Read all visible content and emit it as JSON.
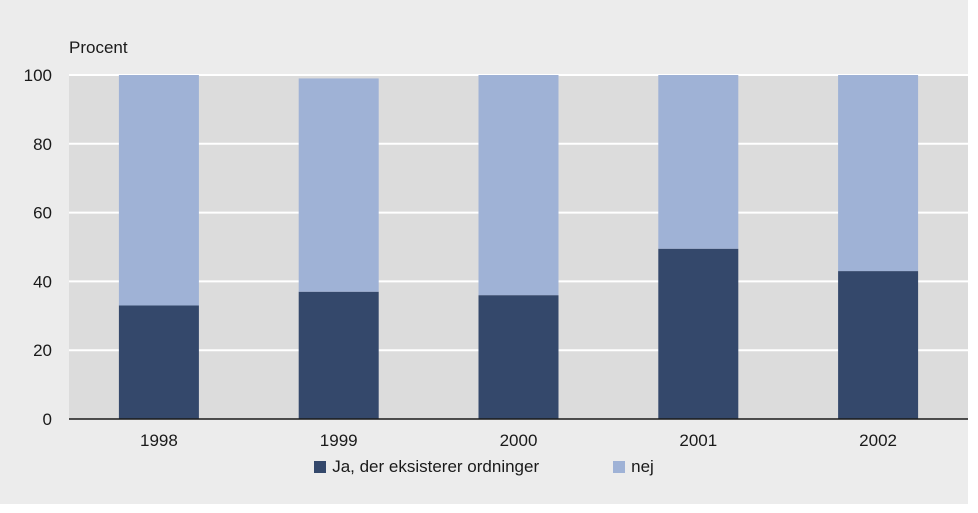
{
  "chart_data": {
    "type": "bar",
    "stacked": true,
    "categories": [
      "1998",
      "1999",
      "2000",
      "2001",
      "2002"
    ],
    "series": [
      {
        "name": "Ja, der eksisterer ordninger",
        "values": [
          33,
          37,
          36,
          49.5,
          43
        ],
        "color": "#34486b"
      },
      {
        "name": "nej",
        "values": [
          67,
          62,
          64,
          50.5,
          57
        ],
        "color": "#9fb2d6"
      }
    ],
    "title": "",
    "ylabel": "Procent",
    "xlabel": "",
    "ylim": [
      0,
      100
    ],
    "yticks": [
      0,
      20,
      40,
      60,
      80,
      100
    ],
    "grid": true,
    "plot_background": "#dcdcdc",
    "frame_background": "#ececec",
    "legend_position": "bottom"
  }
}
